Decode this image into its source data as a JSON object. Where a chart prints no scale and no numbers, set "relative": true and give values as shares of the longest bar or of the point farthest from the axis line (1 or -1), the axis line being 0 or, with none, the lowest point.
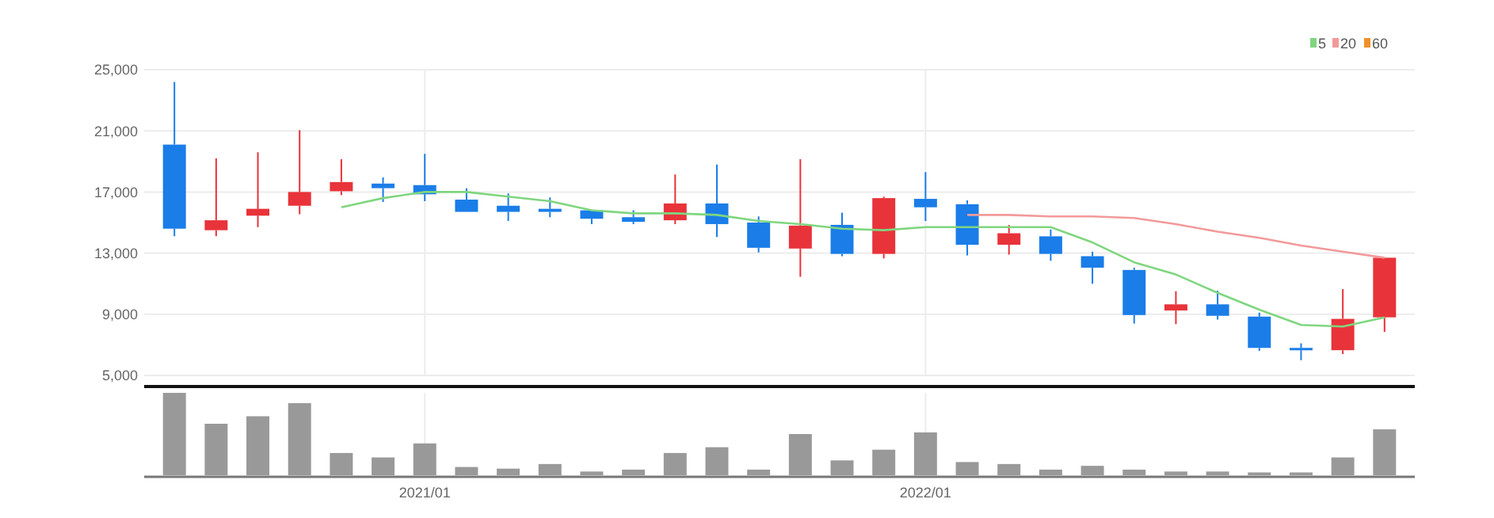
{
  "chart_data": [
    {
      "type": "candlestick",
      "categories": [
        null,
        null,
        null,
        null,
        null,
        null,
        "2021/01",
        null,
        null,
        null,
        null,
        null,
        null,
        null,
        null,
        null,
        null,
        null,
        "2022/01",
        null,
        null,
        null,
        null,
        null,
        null,
        null,
        null,
        null,
        null,
        null
      ],
      "ohlc": [
        [
          20100,
          24200,
          14100,
          14600
        ],
        [
          14500,
          19200,
          14100,
          15150
        ],
        [
          15450,
          19600,
          14700,
          15900
        ],
        [
          16100,
          21050,
          15550,
          17000
        ],
        [
          17050,
          19150,
          16800,
          17650
        ],
        [
          17550,
          17950,
          16350,
          17250
        ],
        [
          17450,
          19500,
          16400,
          16850
        ],
        [
          16500,
          17250,
          15700,
          15700
        ],
        [
          16100,
          16900,
          15100,
          15700
        ],
        [
          15900,
          16650,
          15350,
          15700
        ],
        [
          15800,
          15800,
          14900,
          15250
        ],
        [
          15350,
          15800,
          14900,
          15050
        ],
        [
          15150,
          18150,
          14900,
          16250
        ],
        [
          16250,
          18800,
          14050,
          14900
        ],
        [
          15000,
          15400,
          13050,
          13350
        ],
        [
          13300,
          19150,
          11450,
          14800
        ],
        [
          14850,
          15650,
          12800,
          12950
        ],
        [
          12950,
          16700,
          12650,
          16600
        ],
        [
          16550,
          18300,
          15100,
          16000
        ],
        [
          16200,
          16450,
          12850,
          13550
        ],
        [
          13550,
          14850,
          12900,
          14300
        ],
        [
          14100,
          14550,
          12500,
          12950
        ],
        [
          12800,
          13100,
          11000,
          12050
        ],
        [
          11900,
          12050,
          8400,
          8950
        ],
        [
          9250,
          10500,
          8350,
          9650
        ],
        [
          9650,
          10550,
          8650,
          8900
        ],
        [
          8850,
          9100,
          6600,
          6800
        ],
        [
          6800,
          7100,
          6000,
          6650
        ],
        [
          6650,
          10650,
          6400,
          8700
        ],
        [
          8800,
          12700,
          7850,
          12700
        ]
      ],
      "colors": [
        "#1a7de8",
        "#e8333a",
        "#e8333a",
        "#e8333a",
        "#e8333a",
        "#1a7de8",
        "#1a7de8",
        "#1a7de8",
        "#1a7de8",
        "#1a7de8",
        "#1a7de8",
        "#1a7de8",
        "#e8333a",
        "#1a7de8",
        "#1a7de8",
        "#e8333a",
        "#1a7de8",
        "#e8333a",
        "#1a7de8",
        "#1a7de8",
        "#e8333a",
        "#1a7de8",
        "#1a7de8",
        "#1a7de8",
        "#e8333a",
        "#1a7de8",
        "#1a7de8",
        "#1a7de8",
        "#e8333a",
        "#e8333a"
      ],
      "series": [
        {
          "name": "5",
          "type": "line",
          "color": "#7fd67f",
          "values": [
            null,
            null,
            null,
            null,
            16000,
            16600,
            17000,
            17000,
            16700,
            16400,
            15800,
            15600,
            15600,
            15500,
            15100,
            14900,
            14600,
            14500,
            14700,
            14700,
            14700,
            14700,
            13700,
            12400,
            11600,
            10400,
            9300,
            8300,
            8200,
            8800
          ]
        },
        {
          "name": "20",
          "type": "line",
          "color": "#f29a9a",
          "values": [
            null,
            null,
            null,
            null,
            null,
            null,
            null,
            null,
            null,
            null,
            null,
            null,
            null,
            null,
            null,
            null,
            null,
            null,
            null,
            15500,
            15500,
            15400,
            15400,
            15300,
            14900,
            14400,
            14000,
            13500,
            13100,
            12700
          ]
        },
        {
          "name": "60",
          "type": "line",
          "color": "#f0902a",
          "values": [
            null,
            null,
            null,
            null,
            null,
            null,
            null,
            null,
            null,
            null,
            null,
            null,
            null,
            null,
            null,
            null,
            null,
            null,
            null,
            null,
            null,
            null,
            null,
            null,
            null,
            null,
            null,
            null,
            null,
            null
          ]
        }
      ],
      "ylim": [
        5000,
        25000
      ],
      "yticks": [
        {
          "value": 5000,
          "label": "5,000"
        },
        {
          "value": 9000,
          "label": "9,000"
        },
        {
          "value": 13000,
          "label": "13,000"
        },
        {
          "value": 17000,
          "label": "17,000"
        },
        {
          "value": 21000,
          "label": "21,000"
        },
        {
          "value": 25000,
          "label": "25,000"
        }
      ],
      "grid": true,
      "legend": "top right",
      "tick_labels": "y"
    },
    {
      "type": "bar",
      "relative": true,
      "color": "#999999",
      "categories": [
        null,
        null,
        null,
        null,
        null,
        null,
        "2021/01",
        null,
        null,
        null,
        null,
        null,
        null,
        null,
        null,
        null,
        null,
        null,
        "2022/01",
        null,
        null,
        null,
        null,
        null,
        null,
        null,
        null,
        null,
        null,
        null
      ],
      "values": [
        1,
        0.625,
        0.716,
        0.875,
        0.27,
        0.216,
        0.386,
        0.1,
        0.08,
        0.136,
        0.045,
        0.068,
        0.27,
        0.34,
        0.068,
        0.5,
        0.18,
        0.31,
        0.52,
        0.16,
        0.136,
        0.068,
        0.114,
        0.068,
        0.045,
        0.045,
        0.034,
        0.034,
        0.216,
        0.557
      ]
    }
  ]
}
